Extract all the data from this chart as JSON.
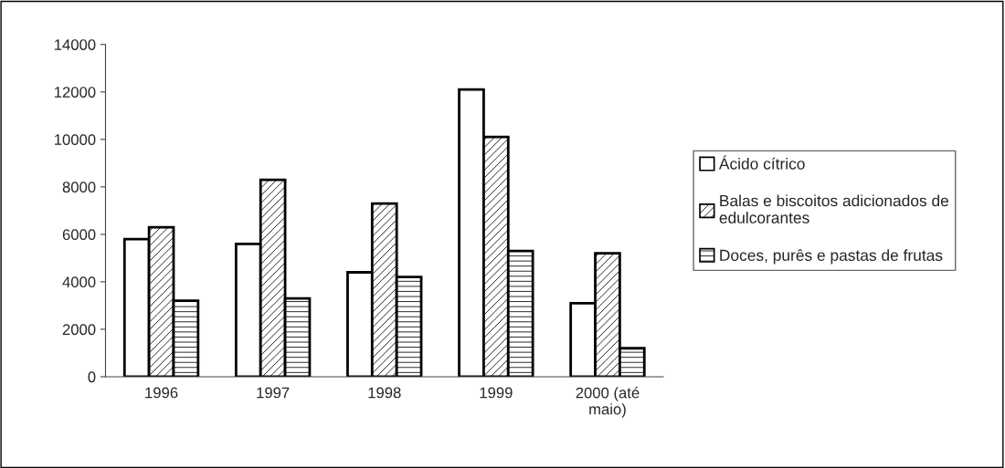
{
  "chart_data": {
    "type": "bar",
    "categories": [
      "1996",
      "1997",
      "1998",
      "1999",
      "2000 (até\nmaio)"
    ],
    "series": [
      {
        "name": "Ácido cítrico",
        "color": "#ffffff",
        "values": [
          5800,
          5600,
          4400,
          12100,
          3100
        ]
      },
      {
        "name": "Balas e biscoitos adicionados de\nedulcorantes",
        "color": "#000000",
        "values": [
          6300,
          8300,
          7300,
          10100,
          5200
        ]
      },
      {
        "name": "Doces, purês e pastas de frutas",
        "color": "#000000",
        "values": [
          3200,
          3300,
          4200,
          5300,
          1200
        ]
      }
    ],
    "ylim": [
      0,
      14000
    ],
    "yticks": [
      0,
      2000,
      4000,
      6000,
      8000,
      10000,
      12000,
      14000
    ],
    "grid": false,
    "legend": "right"
  }
}
